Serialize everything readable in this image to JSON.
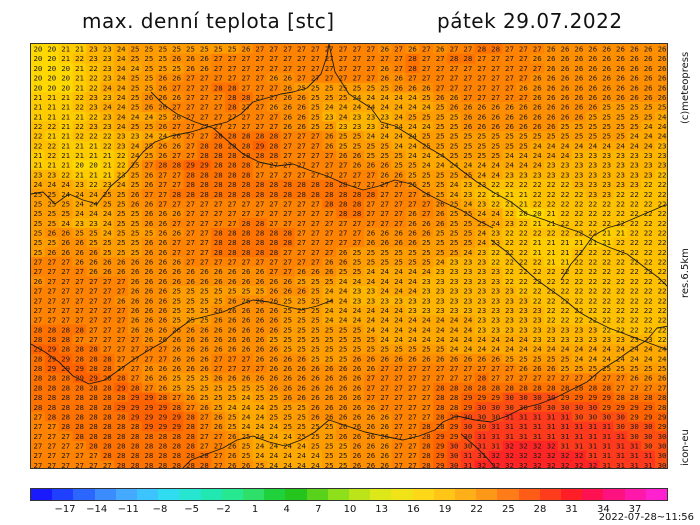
{
  "header": {
    "title": "max. denní teplota [stc]",
    "date": "pátek 29.07.2022"
  },
  "side_labels": {
    "credit": "(c)meteopress",
    "resolution": "res.6.5km",
    "model": "icon-eu"
  },
  "timestamp": "2022-07-28~11:56",
  "grid": {
    "rows": [
      "20 20 21 21 23 23 24 25 25 25 25 25 25 25 25 26 27 27 27 27 27 27 27 27 27 26 27 26 27 26 27 27 28 28 27 27 27 26 26 26 26 26 26 26 26 26",
      "20 20 21 22 23 23 24 25 25 25 26 26 26 27 27 27 27 27 27 27 27 27 27 27 27 27 27 28 27 27 28 28 27 27 27 27 26 26 26 26 26 26 26 26 26 26",
      "20 20 20 21 22 23 24 24 25 25 25 26 26 27 27 27 27 27 27 27 27 27 27 27 27 26 27 28 27 27 27 27 27 27 27 27 27 26 26 26 26 26 26 26 26 26",
      "20 20 20 21 22 23 24 25 25 26 26 27 27 27 27 27 27 26 26 27 27 27 27 27 27 26 26 27 27 27 27 27 27 27 27 27 26 26 26 26 26 26 26 26 26 26",
      "20 20 20 21 22 24 24 25 25 26 27 27 27 28 28 27 27 27 26 25 25 25 25 25 25 25 26 26 26 27 27 27 27 27 27 26 26 26 26 26 26 26 26 26 26 26",
      "21 21 21 22 23 23 24 25 26 26 26 27 27 27 28 28 27 27 26 26 25 25 25 24 24 24 24 24 25 26 26 27 27 27 27 27 26 26 26 26 26 26 26 26 26 26",
      "21 21 21 22 23 24 24 25 26 26 27 27 27 27 28 27 27 26 26 26 25 24 24 24 24 24 24 24 24 25 26 26 26 26 26 26 26 26 26 26 26 25 25 25 25 25",
      "21 21 21 21 22 23 24 24 24 25 26 27 27 27 27 27 27 27 26 26 25 23 24 23 23 23 24 25 25 25 25 26 26 26 26 26 26 26 26 26 25 25 25 25 25 24",
      "22 22 21 22 23 23 24 25 25 26 27 27 27 27 27 27 27 27 26 26 25 25 23 23 23 24 24 24 24 25 25 26 26 26 26 26 26 26 25 25 25 25 25 25 24 24",
      "22 21 21 22 22 22 23 23 24 24 26 27 27 28 28 28 28 28 27 27 27 26 25 25 24 24 24 24 25 25 25 25 25 25 25 25 25 25 25 25 25 25 25 24 24 24",
      "22 22 21 21 21 22 23 24 25 26 26 27 28 28 28 28 29 28 27 27 27 26 25 25 25 25 24 24 25 25 25 25 25 25 25 25 24 24 24 24 24 24 24 24 24 23",
      "21 22 21 21 21 21 22 24 25 26 27 27 28 28 28 28 28 28 27 27 27 27 26 26 25 25 25 24 24 24 25 25 25 25 24 24 24 24 24 23 23 23 23 23 23 23",
      "21 21 21 20 20 21 22 25 27 28 28 29 29 28 28 28 27 27 27 27 27 27 27 26 26 26 25 25 24 24 24 24 24 24 24 24 24 23 23 23 23 23 23 23 23 23",
      "23 23 22 21 21 21 23 25 26 27 27 28 28 28 28 28 27 27 27 27 27 27 27 27 27 26 26 25 25 25 25 25 24 24 23 23 23 23 23 23 23 23 23 23 23 22",
      "24 24 24 23 22 23 24 25 26 27 27 28 28 28 28 28 28 28 28 28 28 28 28 27 27 27 27 26 25 25 24 23 23 22 22 22 22 22 22 23 23 23 23 23 22 22",
      "25 25 24 24 24 25 25 26 27 27 28 28 28 28 28 28 28 28 28 28 28 28 28 28 28 27 27 27 26 25 24 23 22 21 21 21 22 22 22 22 23 23 22 22 22 22",
      "25 25 25 24 24 25 25 26 26 27 27 27 27 27 27 27 27 27 27 27 27 28 28 28 27 27 27 27 27 26 25 24 23 22 21 21 22 22 22 22 22 22 22 22 22 22",
      "25 25 25 24 24 24 25 25 26 26 26 27 27 27 27 27 27 27 27 27 27 27 28 28 27 27 27 26 27 26 25 25 24 24 22 20 20 21 22 22 22 22 22 22 22 22",
      "25 25 24 23 23 24 25 25 26 26 27 27 27 27 27 28 28 27 27 27 27 27 27 27 27 27 27 26 26 26 25 25 25 24 23 22 21 21 22 22 22 22 22 22 22 22",
      "25 26 26 25 25 24 25 25 25 26 26 27 27 28 28 28 28 28 28 27 27 27 27 27 26 26 26 26 26 25 25 25 24 23 22 22 22 22 22 22 22 21 21 22 22 22",
      "25 25 26 26 25 25 25 25 26 26 27 27 27 28 28 28 28 28 28 27 27 27 27 27 26 26 26 26 25 25 25 25 24 23 22 22 21 21 21 21 21 21 22 22 22 22",
      "25 26 26 26 26 25 25 25 26 26 27 27 27 28 28 28 28 28 27 27 27 27 26 25 25 25 25 25 25 25 25 24 23 22 22 22 21 21 21 22 22 22 22 22 22 22",
      "27 27 27 26 26 26 26 26 26 26 26 27 27 27 27 27 27 27 27 27 27 26 26 25 25 25 25 25 25 24 23 23 23 22 22 22 22 21 21 22 22 22 22 22 22 22",
      "27 27 27 27 26 26 26 26 26 26 26 26 26 26 26 26 26 27 27 26 26 26 25 25 24 24 24 24 24 23 23 23 23 23 22 22 22 22 22 22 22 22 22 22 22 22",
      "26 27 27 27 27 27 27 26 26 26 26 26 26 26 26 26 26 26 26 25 25 25 24 24 24 24 24 24 23 23 23 23 23 23 22 22 22 22 22 22 22 22 22 22 22 22",
      "27 27 27 27 27 27 27 26 26 26 25 25 25 25 25 25 25 26 26 26 25 24 24 23 23 24 24 24 23 23 23 23 23 23 23 22 22 22 22 22 22 22 22 22 22 22",
      "27 27 27 27 27 27 26 26 26 26 25 25 25 25 26 26 26 26 25 25 25 24 24 23 23 23 23 23 23 23 23 23 23 23 23 23 22 22 22 22 22 22 22 22 22 22",
      "27 27 27 27 27 27 27 26 26 26 25 25 25 26 26 26 26 26 25 25 25 24 24 24 24 24 24 23 23 23 23 23 23 23 23 23 23 22 22 22 22 22 22 22 22 22",
      "27 27 27 27 27 27 27 26 26 26 25 25 25 26 26 26 26 26 25 25 25 24 24 24 24 24 24 24 24 24 24 24 23 23 23 23 23 22 22 22 22 22 22 22 22 22",
      "28 28 28 28 27 27 27 26 26 26 26 26 26 26 26 26 26 26 25 25 25 25 25 25 24 24 24 24 24 24 24 24 23 23 23 23 23 23 23 23 23 22 22 22 22 22",
      "28 28 28 27 27 27 27 27 26 26 26 26 26 26 26 26 26 25 25 25 25 25 25 25 25 24 24 24 24 24 24 24 24 24 24 24 23 23 23 23 23 23 23 23 23 22",
      "29 29 28 28 28 27 27 27 27 27 26 26 26 26 26 26 26 26 25 25 25 25 25 25 25 25 25 25 25 25 24 24 24 24 24 24 24 24 24 24 24 24 24 24 24 24",
      "28 29 29 28 28 28 27 27 27 27 26 26 26 27 27 27 26 26 26 26 25 25 25 26 26 26 26 26 26 26 26 26 26 26 25 25 25 25 25 24 24 24 24 24 24 24",
      "28 29 29 29 28 28 27 27 26 26 26 26 26 27 27 27 27 26 26 26 26 26 26 26 26 27 27 27 27 27 27 27 27 27 27 26 26 26 25 25 25 25 25 25 25 25",
      "28 28 28 29 29 28 28 27 26 26 25 25 25 26 26 26 26 26 26 26 26 26 26 26 27 27 27 27 27 27 27 27 28 27 27 27 27 27 27 27 27 27 27 26 26 26",
      "28 28 28 28 28 28 29 28 27 26 25 25 25 25 25 25 25 26 26 26 26 26 26 26 27 27 27 27 27 28 28 28 28 28 28 28 28 28 28 28 28 28 27 27 27 27",
      "28 28 28 28 28 28 28 29 29 28 27 26 25 25 25 24 25 25 26 26 26 26 26 26 27 27 27 27 27 28 28 29 29 29 30 30 30 30 29 29 29 29 28 28 28 28",
      "28 28 28 28 28 28 29 29 29 29 28 27 26 25 24 24 24 25 25 25 26 26 26 26 26 27 27 27 27 28 28 29 30 30 30 30 30 30 30 30 30 29 29 29 29 28",
      "27 28 28 28 28 28 28 29 29 29 29 28 27 26 25 24 24 25 25 25 26 26 26 26 26 26 27 27 27 28 29 30 30 30 31 31 31 31 31 30 30 30 30 29 29 29",
      "27 27 28 28 28 28 28 28 29 29 29 28 27 26 25 24 24 24 25 25 25 25 26 26 26 26 27 27 28 28 29 30 30 31 31 31 31 31 31 31 31 31 30 30 30 29",
      "27 27 27 28 28 28 28 28 28 28 28 28 27 27 26 25 24 24 24 25 25 25 26 26 26 26 27 27 28 29 29 30 31 31 31 31 31 31 31 31 31 31 31 30 30 30",
      "27 27 27 27 28 28 28 28 28 28 28 28 27 27 26 25 24 24 24 24 25 25 25 26 26 26 27 27 28 29 30 30 31 31 32 32 32 32 31 31 31 31 31 31 30 30",
      "27 27 27 27 27 28 28 28 28 28 28 28 28 27 26 25 24 24 24 24 24 25 25 26 26 26 27 27 28 29 30 31 31 32 32 32 32 32 32 32 31 31 31 31 31 30",
      "27 27 27 27 27 27 28 28 28 28 28 28 28 27 26 26 25 24 24 24 24 25 25 26 26 26 27 27 28 29 30 31 32 32 32 32 32 32 32 32 32 31 31 31 31 30"
    ]
  },
  "colorbar": {
    "labels": [
      "−17",
      "−14",
      "−11",
      "−8",
      "−5",
      "−2",
      "1",
      "4",
      "7",
      "10",
      "13",
      "16",
      "19",
      "22",
      "25",
      "28",
      "31",
      "34",
      "37"
    ]
  },
  "palette": {
    "t20": "#ffd800",
    "t21": "#ffcc00",
    "t22": "#ffc000",
    "t23": "#ffb400",
    "t24": "#ffa800",
    "t25": "#ff9c00",
    "t26": "#ff8f00",
    "t27": "#ff8200",
    "t28": "#ff7200",
    "t29": "#ff6200",
    "t30": "#ff4e12",
    "t31": "#ff3a1c",
    "t32": "#ff2525"
  }
}
